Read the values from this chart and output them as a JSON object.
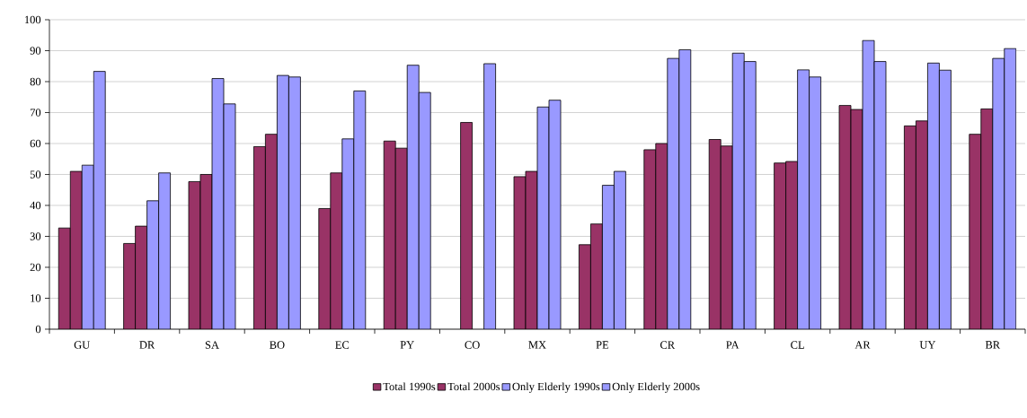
{
  "chart_data": {
    "type": "bar",
    "categories": [
      "GU",
      "DR",
      "SA",
      "BO",
      "EC",
      "PY",
      "CO",
      "MX",
      "PE",
      "CR",
      "PA",
      "CL",
      "AR",
      "UY",
      "BR"
    ],
    "series": [
      {
        "name": "Total 1990s",
        "color": "#993366",
        "values": [
          32.7,
          27.7,
          47.7,
          59,
          39,
          60.8,
          null,
          49.3,
          27.3,
          58,
          61.3,
          53.7,
          72.3,
          65.7,
          63
        ]
      },
      {
        "name": "Total 2000s",
        "color": "#993366",
        "values": [
          51,
          33.3,
          50,
          63,
          50.5,
          58.5,
          66.8,
          51,
          34,
          60,
          59.2,
          54.2,
          71,
          67.3,
          71.2
        ]
      },
      {
        "name": "Only Elderly 1990s",
        "color": "#9999ff",
        "values": [
          53,
          41.5,
          81,
          82,
          61.5,
          85.3,
          null,
          71.8,
          46.5,
          87.5,
          89.2,
          83.8,
          93.3,
          86,
          87.5
        ]
      },
      {
        "name": "Only Elderly 2000s",
        "color": "#9999ff",
        "values": [
          83.3,
          50.5,
          72.8,
          81.5,
          77,
          76.5,
          85.8,
          74,
          51,
          90.3,
          86.5,
          81.5,
          86.5,
          83.7,
          90.7
        ]
      }
    ],
    "ylim": [
      0,
      100
    ],
    "yticks": [
      0,
      10,
      20,
      30,
      40,
      50,
      60,
      70,
      80,
      90,
      100
    ],
    "grid": "y",
    "legend": "bottom"
  }
}
